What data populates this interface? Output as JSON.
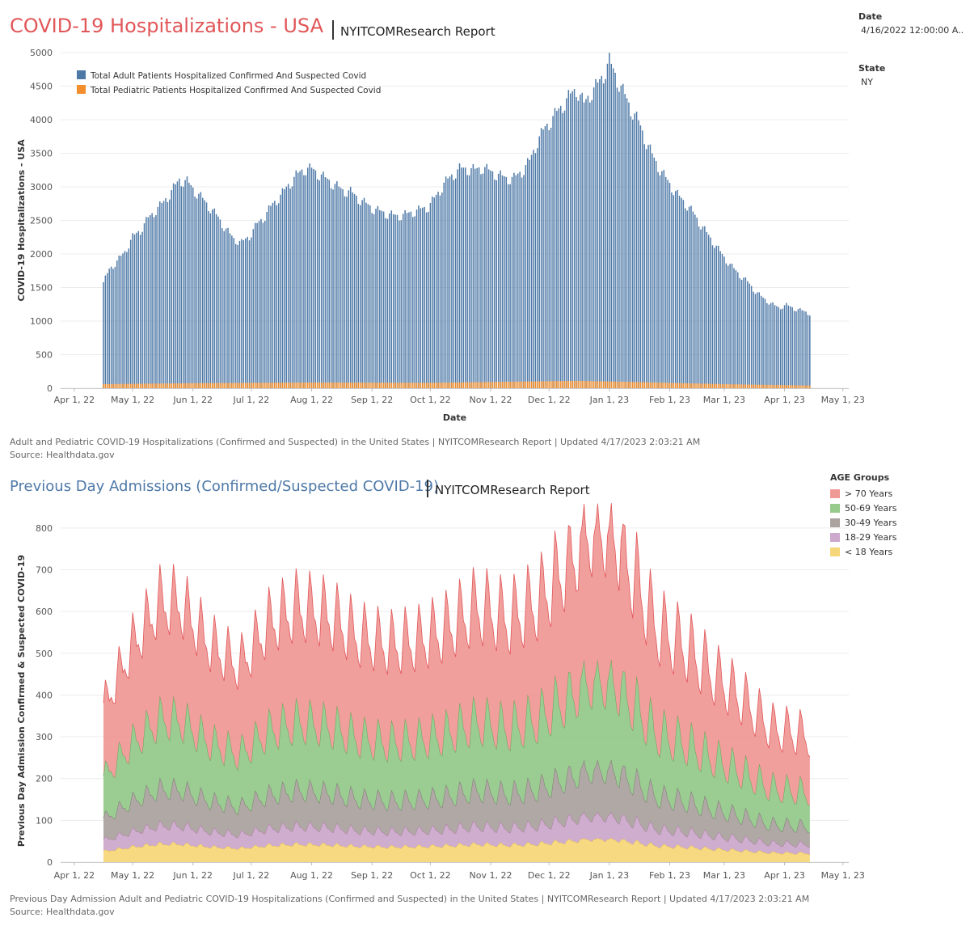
{
  "header": {
    "title": "COVID-19 Hospitalizations - USA",
    "report": "NYITCOMResearch Report"
  },
  "filters": {
    "date_label": "Date",
    "date_value": "4/16/2022 12:00:00 A..",
    "state_label": "State",
    "state_value": "NY"
  },
  "caption1": {
    "line1": "Adult and Pediatric COVID-19 Hospitalizations (Confirmed and Suspected) in the United States | NYITCOMResearch Report | Updated 4/17/2023 2:03:21 AM",
    "line2": "Source: Healthdata.gov"
  },
  "section2": {
    "title": "Previous Day Admissions (Confirmed/Suspected COVID-19)",
    "report": "NYITCOMResearch Report"
  },
  "caption2": {
    "line1": "Previous Day Admission Adult and Pediatric COVID-19 Hospitalizations (Confirmed and Suspected) in the United States | NYITCOMResearch Report | Updated 4/17/2023 2:03:21 AM",
    "line2": "Source: Healthdata.gov"
  },
  "legend2": {
    "title": "AGE Groups",
    "items": [
      {
        "label": "> 70 Years",
        "color": "#f09a98"
      },
      {
        "label": "50-69 Years",
        "color": "#96c98c"
      },
      {
        "label": "30-49 Years",
        "color": "#aba3a0"
      },
      {
        "label": "18-29 Years",
        "color": "#cca9cc"
      },
      {
        "label": "< 18 Years",
        "color": "#f5d77a"
      }
    ]
  },
  "chart_data": [
    {
      "type": "bar",
      "stacked": true,
      "xlabel": "Date",
      "ylabel": "COVID-19 Hospitalizations - USA",
      "ylim": [
        0,
        5000
      ],
      "y_ticks": [
        0,
        500,
        1000,
        1500,
        2000,
        2500,
        3000,
        3500,
        4000,
        4500,
        5000
      ],
      "x_ticks": [
        "Apr 1, 22",
        "May 1, 22",
        "Jun 1, 22",
        "Jul 1, 22",
        "Aug 1, 22",
        "Sep 1, 22",
        "Oct 1, 22",
        "Nov 1, 22",
        "Dec 1, 22",
        "Jan 1, 23",
        "Feb 1, 23",
        "Mar 1, 23",
        "Apr 1, 23",
        "May 1, 23"
      ],
      "x_range": [
        "2022-03-25",
        "2023-05-04"
      ],
      "legend_position": "top-left",
      "grid": true,
      "series": [
        {
          "name": "Total Adult Patients Hospitalized Confirmed And Suspected Covid",
          "color": "#4e79a7",
          "keyframes": [
            [
              "2022-04-16",
              1520
            ],
            [
              "2022-04-19",
              1720
            ],
            [
              "2022-04-23",
              1840
            ],
            [
              "2022-04-27",
              1980
            ],
            [
              "2022-05-01",
              2200
            ],
            [
              "2022-05-05",
              2300
            ],
            [
              "2022-05-09",
              2480
            ],
            [
              "2022-05-13",
              2600
            ],
            [
              "2022-05-17",
              2720
            ],
            [
              "2022-05-21",
              2880
            ],
            [
              "2022-05-25",
              3050
            ],
            [
              "2022-05-29",
              3020
            ],
            [
              "2022-06-02",
              2880
            ],
            [
              "2022-06-06",
              2760
            ],
            [
              "2022-06-10",
              2620
            ],
            [
              "2022-06-14",
              2480
            ],
            [
              "2022-06-18",
              2300
            ],
            [
              "2022-06-22",
              2160
            ],
            [
              "2022-06-26",
              2100
            ],
            [
              "2022-06-30",
              2200
            ],
            [
              "2022-07-04",
              2380
            ],
            [
              "2022-07-08",
              2500
            ],
            [
              "2022-07-12",
              2680
            ],
            [
              "2022-07-16",
              2800
            ],
            [
              "2022-07-20",
              2960
            ],
            [
              "2022-07-24",
              3100
            ],
            [
              "2022-07-28",
              3200
            ],
            [
              "2022-08-01",
              3200
            ],
            [
              "2022-08-05",
              3120
            ],
            [
              "2022-08-09",
              3040
            ],
            [
              "2022-08-13",
              2960
            ],
            [
              "2022-08-17",
              2880
            ],
            [
              "2022-08-21",
              2860
            ],
            [
              "2022-08-25",
              2760
            ],
            [
              "2022-08-29",
              2680
            ],
            [
              "2022-09-02",
              2600
            ],
            [
              "2022-09-06",
              2560
            ],
            [
              "2022-09-10",
              2520
            ],
            [
              "2022-09-14",
              2500
            ],
            [
              "2022-09-18",
              2520
            ],
            [
              "2022-09-22",
              2560
            ],
            [
              "2022-09-26",
              2600
            ],
            [
              "2022-09-30",
              2640
            ],
            [
              "2022-10-04",
              2800
            ],
            [
              "2022-10-08",
              2980
            ],
            [
              "2022-10-12",
              3100
            ],
            [
              "2022-10-16",
              3200
            ],
            [
              "2022-10-20",
              3200
            ],
            [
              "2022-10-24",
              3180
            ],
            [
              "2022-10-28",
              3220
            ],
            [
              "2022-11-01",
              3150
            ],
            [
              "2022-11-05",
              3100
            ],
            [
              "2022-11-09",
              3050
            ],
            [
              "2022-11-13",
              3050
            ],
            [
              "2022-11-17",
              3150
            ],
            [
              "2022-11-21",
              3300
            ],
            [
              "2022-11-25",
              3600
            ],
            [
              "2022-11-29",
              3800
            ],
            [
              "2022-12-03",
              3950
            ],
            [
              "2022-12-07",
              4100
            ],
            [
              "2022-12-11",
              4250
            ],
            [
              "2022-12-15",
              4380
            ],
            [
              "2022-12-19",
              4150
            ],
            [
              "2022-12-22",
              4300
            ],
            [
              "2022-12-26",
              4450
            ],
            [
              "2022-12-29",
              4600
            ],
            [
              "2023-01-01",
              4800
            ],
            [
              "2023-01-04",
              4600
            ],
            [
              "2023-01-08",
              4350
            ],
            [
              "2023-01-12",
              4100
            ],
            [
              "2023-01-16",
              3900
            ],
            [
              "2023-01-20",
              3600
            ],
            [
              "2023-01-24",
              3350
            ],
            [
              "2023-01-28",
              3150
            ],
            [
              "2023-02-01",
              2980
            ],
            [
              "2023-02-05",
              2820
            ],
            [
              "2023-02-09",
              2700
            ],
            [
              "2023-02-13",
              2560
            ],
            [
              "2023-02-17",
              2380
            ],
            [
              "2023-02-21",
              2220
            ],
            [
              "2023-02-25",
              2060
            ],
            [
              "2023-03-01",
              1900
            ],
            [
              "2023-03-05",
              1760
            ],
            [
              "2023-03-09",
              1640
            ],
            [
              "2023-03-13",
              1540
            ],
            [
              "2023-03-17",
              1400
            ],
            [
              "2023-03-21",
              1300
            ],
            [
              "2023-03-25",
              1220
            ],
            [
              "2023-03-29",
              1160
            ],
            [
              "2023-04-02",
              1200
            ],
            [
              "2023-04-06",
              1150
            ],
            [
              "2023-04-10",
              1120
            ],
            [
              "2023-04-14",
              1080
            ]
          ]
        },
        {
          "name": "Total Pediatric Patients Hospitalized Confirmed And Suspected Covid",
          "color": "#f28e2b",
          "keyframes": [
            [
              "2022-04-16",
              60
            ],
            [
              "2022-06-01",
              75
            ],
            [
              "2022-08-01",
              85
            ],
            [
              "2022-10-01",
              80
            ],
            [
              "2022-12-15",
              110
            ],
            [
              "2023-01-10",
              95
            ],
            [
              "2023-03-01",
              60
            ],
            [
              "2023-04-14",
              40
            ]
          ]
        }
      ]
    },
    {
      "type": "area",
      "stacked": true,
      "ylabel": "Previous Day Admission Confirmed & Suspected COVID-19",
      "ylim": [
        0,
        850
      ],
      "y_ticks": [
        0,
        100,
        200,
        300,
        400,
        500,
        600,
        700,
        800
      ],
      "x_ticks": [
        "Apr 1, 22",
        "May 1, 22",
        "Jun 1, 22",
        "Jul 1, 22",
        "Aug 1, 22",
        "Sep 1, 22",
        "Oct 1, 22",
        "Nov 1, 22",
        "Dec 1, 22",
        "Jan 1, 23",
        "Feb 1, 23",
        "Mar 1, 23",
        "Apr 1, 23",
        "May 1, 23"
      ],
      "x_range": [
        "2022-03-25",
        "2023-05-04"
      ],
      "legend_position": "right",
      "grid": true,
      "series_order": [
        "< 18 Years",
        "18-29 Years",
        "30-49 Years",
        "50-69 Years",
        "> 70 Years"
      ],
      "total_keyframes": [
        [
          "2022-04-16",
          370
        ],
        [
          "2022-05-01",
          520
        ],
        [
          "2022-05-15",
          620
        ],
        [
          "2022-05-25",
          620
        ],
        [
          "2022-06-10",
          520
        ],
        [
          "2022-06-25",
          470
        ],
        [
          "2022-07-10",
          570
        ],
        [
          "2022-07-25",
          610
        ],
        [
          "2022-08-10",
          590
        ],
        [
          "2022-08-25",
          540
        ],
        [
          "2022-09-10",
          520
        ],
        [
          "2022-09-25",
          530
        ],
        [
          "2022-10-10",
          560
        ],
        [
          "2022-10-25",
          610
        ],
        [
          "2022-11-10",
          580
        ],
        [
          "2022-11-25",
          620
        ],
        [
          "2022-12-10",
          710
        ],
        [
          "2022-12-22",
          780
        ],
        [
          "2023-01-01",
          780
        ],
        [
          "2023-01-12",
          700
        ],
        [
          "2023-01-25",
          560
        ],
        [
          "2023-02-10",
          510
        ],
        [
          "2023-02-25",
          440
        ],
        [
          "2023-03-10",
          390
        ],
        [
          "2023-03-25",
          320
        ],
        [
          "2023-04-14",
          300
        ]
      ],
      "group_share": {
        "> 70 Years": 0.45,
        "50-69 Years": 0.27,
        "30-49 Years": 0.14,
        "18-29 Years": 0.07,
        "< 18 Years": 0.07
      },
      "peak_total": 840
    }
  ]
}
